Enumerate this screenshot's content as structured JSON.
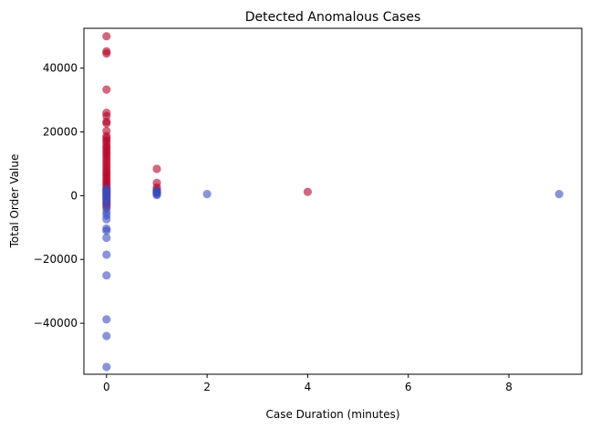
{
  "chart_data": {
    "type": "scatter",
    "title": "Detected Anomalous Cases",
    "xlabel": "Case Duration (minutes)",
    "ylabel": "Total Order Value",
    "xlim": [
      -0.45,
      9.45
    ],
    "ylim": [
      -56000,
      52500
    ],
    "xticks": [
      0,
      2,
      4,
      6,
      8
    ],
    "yticks": [
      -40000,
      -20000,
      0,
      20000,
      40000
    ],
    "grid": false,
    "colors": {
      "anomaly": "#b40426",
      "normal": "#3b4cc0"
    },
    "point_alpha": 0.6,
    "series": [
      {
        "color": "anomaly",
        "points": [
          [
            0,
            50000
          ],
          [
            0,
            45300
          ],
          [
            0,
            44600
          ],
          [
            0,
            33300
          ],
          [
            0,
            26000
          ],
          [
            0,
            25000
          ],
          [
            0,
            23200
          ],
          [
            0,
            22700
          ],
          [
            0,
            20300
          ],
          [
            0,
            18700
          ],
          [
            0,
            18000
          ],
          [
            0,
            17300
          ],
          [
            0,
            16500
          ],
          [
            0,
            15600
          ],
          [
            0,
            15000
          ],
          [
            0,
            14200
          ],
          [
            0,
            13500
          ],
          [
            0,
            12800
          ],
          [
            0,
            12000
          ],
          [
            0,
            11200
          ],
          [
            0,
            10400
          ],
          [
            0,
            9600
          ],
          [
            0,
            8800
          ],
          [
            0,
            8000
          ],
          [
            0,
            7300
          ],
          [
            0,
            6600
          ],
          [
            0,
            5900
          ],
          [
            0,
            5200
          ],
          [
            0,
            4500
          ],
          [
            0,
            3800
          ],
          [
            0,
            3100
          ],
          [
            0,
            2400
          ],
          [
            0,
            1700
          ],
          [
            0,
            1000
          ],
          [
            0,
            400
          ],
          [
            0,
            -300
          ],
          [
            0,
            -1200
          ],
          [
            0,
            -2000
          ],
          [
            0,
            -2800
          ],
          [
            0,
            -3500
          ],
          [
            1,
            8400
          ],
          [
            1,
            4000
          ],
          [
            1,
            2600
          ],
          [
            1,
            1800
          ],
          [
            1,
            1200
          ],
          [
            4,
            1200
          ]
        ]
      },
      {
        "color": "normal",
        "points": [
          [
            0,
            2200
          ],
          [
            0,
            1500
          ],
          [
            0,
            900
          ],
          [
            0,
            300
          ],
          [
            0,
            -300
          ],
          [
            0,
            -900
          ],
          [
            0,
            -1600
          ],
          [
            0,
            -2500
          ],
          [
            0,
            -4000
          ],
          [
            0,
            -5200
          ],
          [
            0,
            -6200
          ],
          [
            0,
            -7400
          ],
          [
            0,
            -10300
          ],
          [
            0,
            -11000
          ],
          [
            0,
            -13200
          ],
          [
            0,
            -18500
          ],
          [
            0,
            -25000
          ],
          [
            0,
            -38800
          ],
          [
            0,
            -44000
          ],
          [
            0,
            -53700
          ],
          [
            1,
            1500
          ],
          [
            1,
            1100
          ],
          [
            1,
            800
          ],
          [
            1,
            500
          ],
          [
            1,
            200
          ],
          [
            2,
            500
          ],
          [
            9,
            500
          ]
        ]
      }
    ]
  }
}
